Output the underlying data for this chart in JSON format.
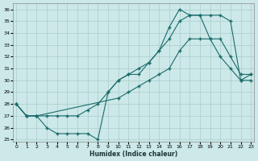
{
  "bg_color": "#cce8e8",
  "grid_color": "#aacccc",
  "line_color": "#1a6b6b",
  "xlabel": "Humidex (Indice chaleur)",
  "ylim": [
    24.8,
    36.5
  ],
  "xlim": [
    -0.3,
    23.3
  ],
  "yticks": [
    25,
    26,
    27,
    28,
    29,
    30,
    31,
    32,
    33,
    34,
    35,
    36
  ],
  "xticks": [
    0,
    1,
    2,
    3,
    4,
    5,
    6,
    7,
    8,
    9,
    10,
    11,
    12,
    13,
    14,
    15,
    16,
    17,
    18,
    19,
    20,
    21,
    22,
    23
  ],
  "series1_x": [
    0,
    1,
    2,
    3,
    4,
    5,
    6,
    7,
    8,
    9,
    10,
    11,
    12,
    13,
    14,
    15,
    16,
    17,
    18,
    19,
    20,
    21,
    22,
    23
  ],
  "series1_y": [
    28.0,
    27.0,
    27.0,
    27.0,
    27.0,
    27.0,
    27.0,
    27.5,
    28.0,
    29.0,
    30.0,
    30.5,
    31.0,
    31.5,
    32.5,
    33.5,
    35.0,
    35.5,
    35.5,
    35.5,
    35.5,
    35.0,
    30.0,
    30.5
  ],
  "series2_x": [
    0,
    1,
    2,
    3,
    4,
    5,
    6,
    7,
    8,
    9,
    10,
    11,
    12,
    13,
    14,
    15,
    16,
    17,
    18,
    19,
    20,
    21,
    22,
    23
  ],
  "series2_y": [
    28.0,
    27.0,
    27.0,
    26.0,
    25.5,
    25.5,
    25.5,
    25.5,
    25.0,
    29.0,
    30.0,
    30.5,
    30.5,
    31.5,
    32.5,
    34.5,
    36.0,
    35.5,
    35.5,
    33.5,
    32.0,
    31.0,
    30.0,
    30.0
  ],
  "series3_x": [
    0,
    1,
    2,
    10,
    11,
    12,
    13,
    14,
    15,
    16,
    17,
    18,
    19,
    20,
    21,
    22,
    23
  ],
  "series3_y": [
    28.0,
    27.0,
    27.0,
    28.5,
    29.0,
    29.5,
    30.0,
    30.5,
    31.0,
    32.5,
    33.5,
    33.5,
    33.5,
    33.5,
    32.0,
    30.5,
    30.5
  ]
}
